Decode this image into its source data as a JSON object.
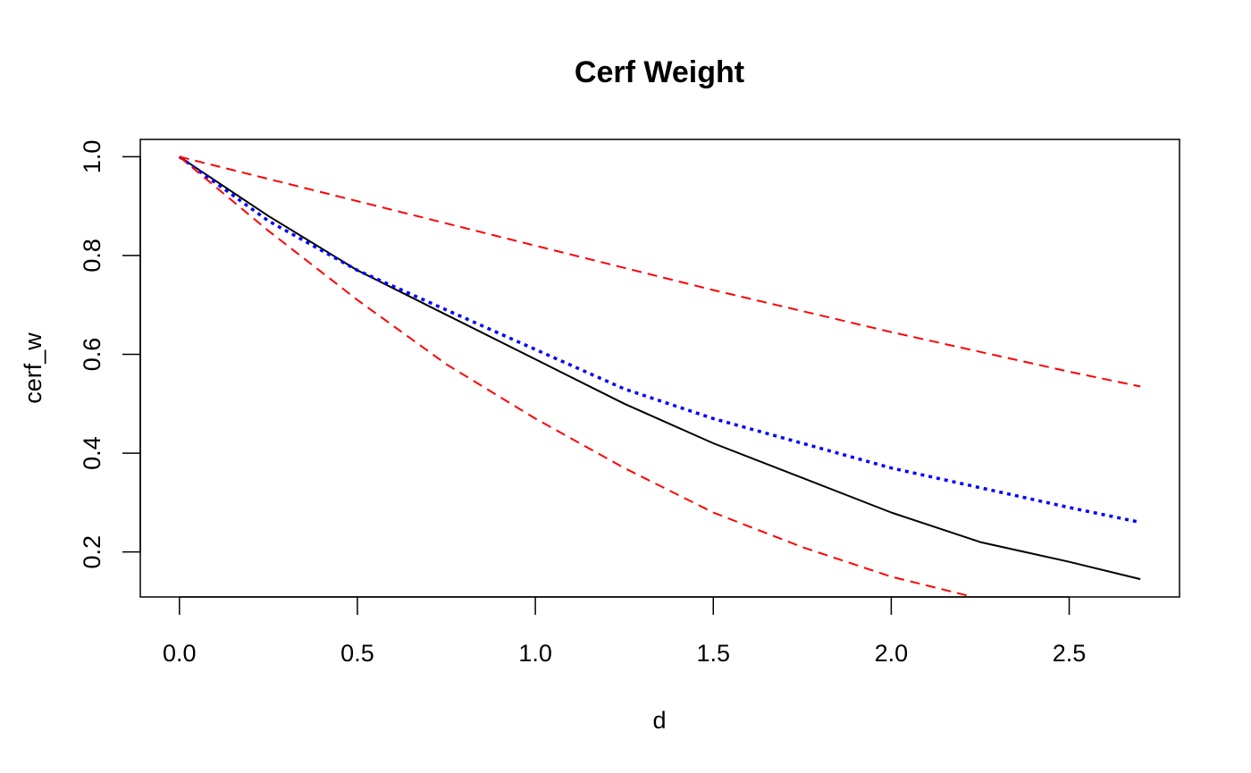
{
  "chart_data": {
    "type": "line",
    "title": "Cerf Weight",
    "xlabel": "d",
    "ylabel": "cerf_w",
    "xlim": [
      -0.11,
      2.81
    ],
    "ylim": [
      0.109,
      1.035
    ],
    "xticks": [
      0.0,
      0.5,
      1.0,
      1.5,
      2.0,
      2.5
    ],
    "xtick_labels": [
      "0.0",
      "0.5",
      "1.0",
      "1.5",
      "2.0",
      "2.5"
    ],
    "yticks": [
      0.2,
      0.4,
      0.6,
      0.8,
      1.0
    ],
    "ytick_labels": [
      "0.2",
      "0.4",
      "0.6",
      "0.8",
      "1.0"
    ],
    "grid": false,
    "series": [
      {
        "style": "solid",
        "color": "#000000",
        "x": [
          0.0,
          0.25,
          0.5,
          0.75,
          1.0,
          1.25,
          1.5,
          1.75,
          2.0,
          2.25,
          2.5,
          2.7
        ],
        "y": [
          1.0,
          0.88,
          0.77,
          0.68,
          0.59,
          0.5,
          0.42,
          0.35,
          0.28,
          0.22,
          0.18,
          0.145
        ]
      },
      {
        "style": "dotted",
        "color": "#0000ff",
        "x": [
          0.0,
          0.25,
          0.5,
          0.75,
          1.0,
          1.25,
          1.5,
          1.75,
          2.0,
          2.25,
          2.5,
          2.7
        ],
        "y": [
          1.0,
          0.87,
          0.77,
          0.69,
          0.61,
          0.53,
          0.47,
          0.42,
          0.37,
          0.33,
          0.29,
          0.26
        ]
      },
      {
        "style": "dashed",
        "color": "#ff0000",
        "x": [
          0.0,
          0.5,
          1.0,
          1.5,
          2.0,
          2.5,
          2.7
        ],
        "y": [
          1.0,
          0.91,
          0.82,
          0.73,
          0.645,
          0.565,
          0.535
        ]
      },
      {
        "style": "dashed",
        "color": "#ff0000",
        "x": [
          0.0,
          0.25,
          0.5,
          0.75,
          1.0,
          1.25,
          1.5,
          1.75,
          2.0,
          2.23
        ],
        "y": [
          1.0,
          0.85,
          0.71,
          0.58,
          0.47,
          0.37,
          0.28,
          0.21,
          0.15,
          0.109
        ]
      }
    ]
  }
}
